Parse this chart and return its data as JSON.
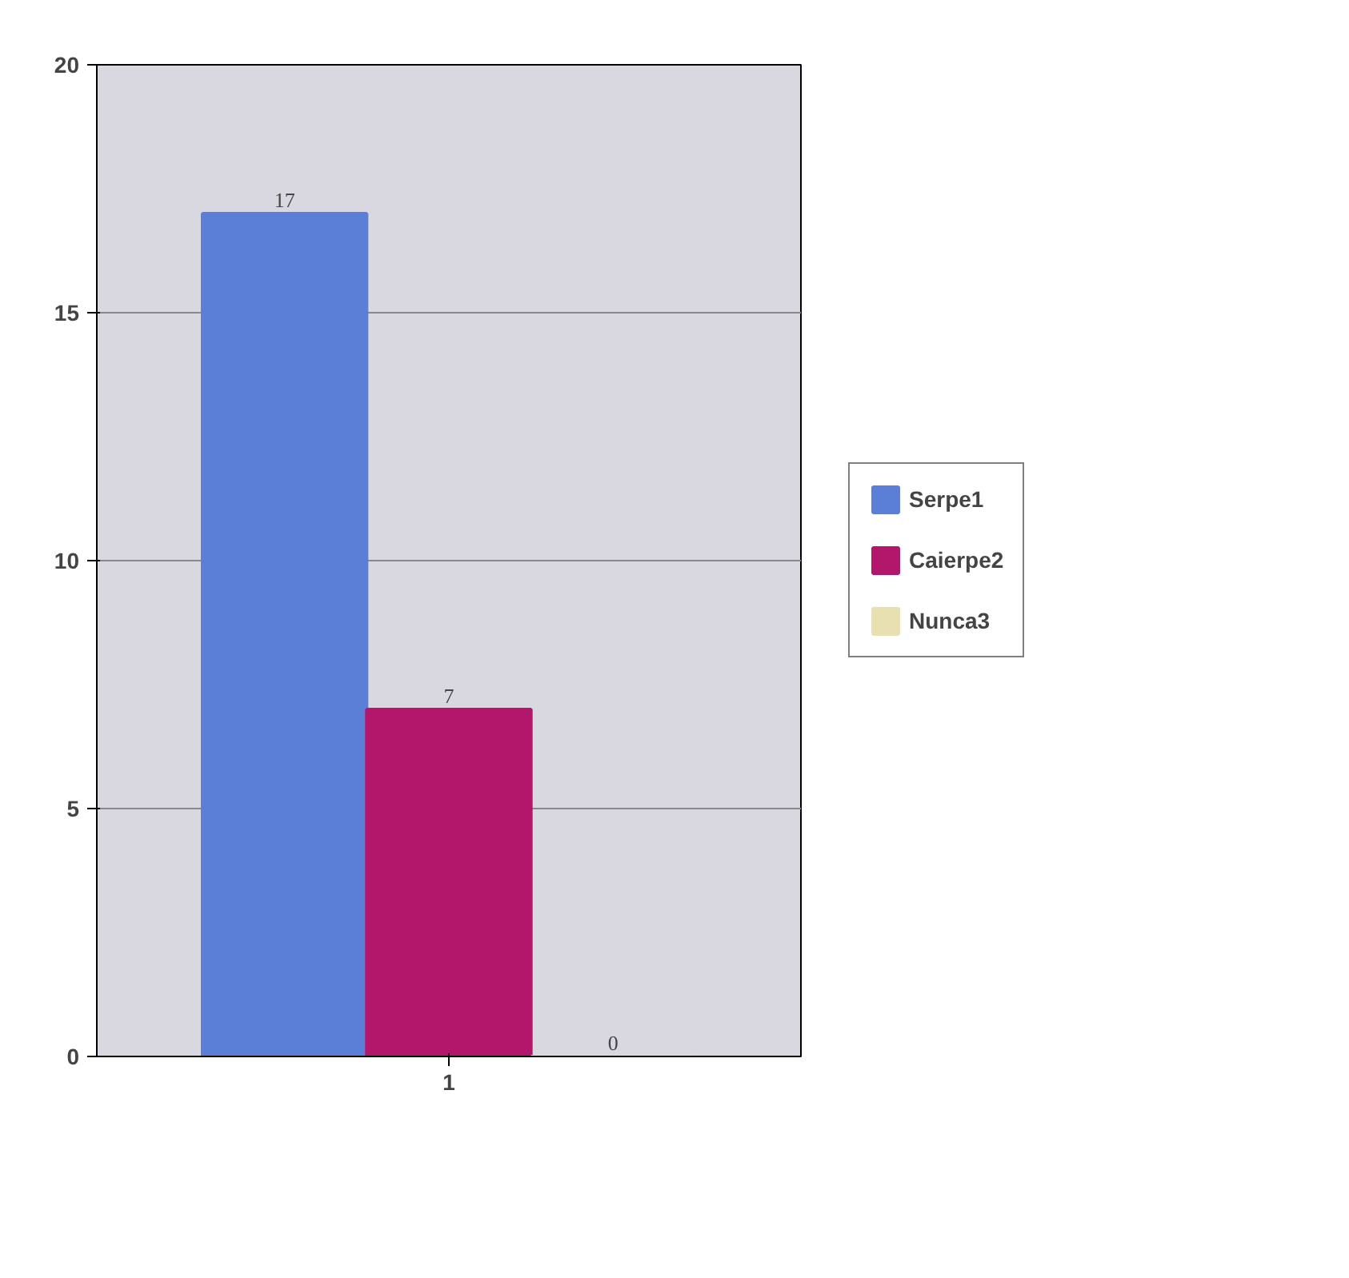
{
  "chart_data": {
    "type": "bar",
    "categories": [
      "1"
    ],
    "series": [
      {
        "name": "Serpe1",
        "color": "#5b7fd6",
        "values": [
          17
        ]
      },
      {
        "name": "Caierpe2",
        "color": "#b3176b",
        "values": [
          7
        ]
      },
      {
        "name": "Nunca3",
        "color": "#e8e0b0",
        "values": [
          0
        ]
      }
    ],
    "ylim": [
      0,
      20
    ],
    "yticks": [
      0,
      5,
      10,
      15,
      20
    ],
    "grid": "y",
    "legend": "right",
    "data_labels": true
  }
}
